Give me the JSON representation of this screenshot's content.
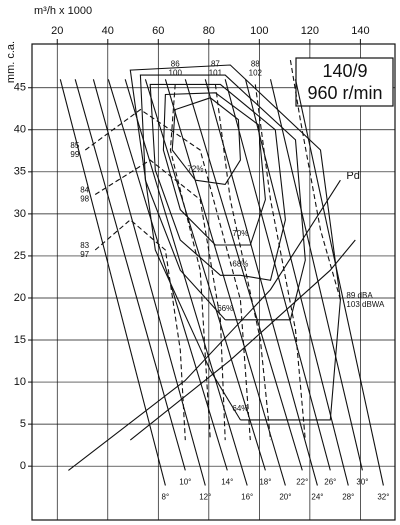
{
  "chart_data": {
    "type": "line",
    "title": "140/9",
    "subtitle": "960 r/min",
    "x_label": "m³/h x 1000",
    "y_label": "mm. c.a.",
    "xlim": [
      10,
      153.7
    ],
    "ylim": [
      -6.4,
      50.2
    ],
    "xticks": [
      20,
      40,
      60,
      80,
      100,
      120,
      140
    ],
    "yticks": [
      0,
      5,
      10,
      15,
      20,
      25,
      30,
      35,
      40,
      45
    ],
    "grid": true,
    "color": "#111",
    "series": [
      {
        "label": "8°",
        "style": "solid",
        "label_at": "end",
        "label_side": "below",
        "x": [
          21.2,
          62.8
        ],
        "values": [
          46.0,
          -2.3
        ]
      },
      {
        "label": "10°",
        "style": "solid",
        "label_at": "end",
        "label_side": "below",
        "x": [
          27.1,
          70.7
        ],
        "values": [
          46.0,
          -0.5
        ]
      },
      {
        "label": "12°",
        "style": "solid",
        "label_at": "end",
        "label_side": "below",
        "x": [
          34.3,
          78.6
        ],
        "values": [
          46.0,
          -2.3
        ]
      },
      {
        "label": "14°",
        "style": "solid",
        "label_at": "end",
        "label_side": "below",
        "x": [
          40.2,
          87.3
        ],
        "values": [
          46.0,
          -0.5
        ]
      },
      {
        "label": "16°",
        "style": "solid",
        "label_at": "end",
        "label_side": "below",
        "x": [
          46.9,
          95.2
        ],
        "values": [
          46.0,
          -2.3
        ]
      },
      {
        "label": "18°",
        "style": "solid",
        "label_at": "end",
        "label_side": "below",
        "x": [
          54.9,
          102.4
        ],
        "values": [
          46.0,
          -0.5
        ]
      },
      {
        "label": "20°",
        "style": "solid",
        "label_at": "end",
        "label_side": "below",
        "x": [
          62.8,
          110.3
        ],
        "values": [
          46.0,
          -2.3
        ]
      },
      {
        "label": "22°",
        "style": "solid",
        "label_at": "end",
        "label_side": "below",
        "x": [
          70.7,
          117.0
        ],
        "values": [
          46.0,
          -0.5
        ]
      },
      {
        "label": "24°",
        "style": "solid",
        "label_at": "end",
        "label_side": "below",
        "x": [
          78.6,
          123.0
        ],
        "values": [
          46.0,
          -2.3
        ]
      },
      {
        "label": "26°",
        "style": "solid",
        "label_at": "end",
        "label_side": "below",
        "x": [
          86.5,
          128.1
        ],
        "values": [
          46.0,
          -0.5
        ]
      },
      {
        "label": "28°",
        "style": "solid",
        "label_at": "end",
        "label_side": "below",
        "x": [
          94.5,
          135.2
        ],
        "values": [
          46.0,
          -2.3
        ]
      },
      {
        "label": "30°",
        "style": "solid",
        "label_at": "end",
        "label_side": "below",
        "x": [
          104.4,
          140.8
        ],
        "values": [
          46.0,
          -0.5
        ]
      },
      {
        "label": "32°",
        "style": "solid",
        "label_at": "end",
        "label_side": "below",
        "x": [
          114.3,
          149.1
        ],
        "values": [
          46.0,
          -2.3
        ]
      },
      {
        "label": "72%",
        "style": "solid",
        "label_at": "end",
        "label_side": "above",
        "x": [
          74.7,
          65.5,
          66.7,
          80.6,
          91.7,
          92.5,
          86.5,
          74.7
        ],
        "values": [
          34.0,
          37.6,
          42.4,
          43.8,
          41.2,
          36.4,
          33.5,
          34.0
        ]
      },
      {
        "label": "70%",
        "style": "solid",
        "label_at": "end",
        "label_side": "above",
        "x": [
          92.5,
          82.6,
          68.7,
          62.0,
          62.8,
          82.6,
          99.6,
          102.4,
          96.4,
          92.5
        ],
        "values": [
          26.3,
          26.3,
          30.5,
          37.6,
          44.2,
          44.4,
          40.6,
          31.7,
          26.3,
          26.3
        ]
      },
      {
        "label": "68%",
        "style": "solid",
        "label_at": "end",
        "label_side": "above",
        "x": [
          92.5,
          84.6,
          68.7,
          58.8,
          56.8,
          84.6,
          106.3,
          110.3,
          104.4,
          92.5
        ],
        "values": [
          22.7,
          22.7,
          26.9,
          35.2,
          45.4,
          45.4,
          40.0,
          29.3,
          22.1,
          22.7
        ]
      },
      {
        "label": "66%",
        "style": "solid",
        "label_at": "end",
        "label_side": "above",
        "x": [
          86.5,
          68.7,
          54.9,
          52.9,
          86.5,
          114.3,
          118.2,
          112.3,
          86.5
        ],
        "values": [
          17.4,
          23.3,
          34.0,
          46.5,
          46.5,
          38.8,
          24.5,
          17.4,
          17.4
        ]
      },
      {
        "label": "64%",
        "style": "solid",
        "label_at": "end",
        "label_side": "above",
        "x": [
          92.5,
          80.6,
          58.8,
          48.9,
          88.5,
          124.2,
          132.1,
          128.1,
          108.3,
          92.5
        ],
        "values": [
          5.5,
          11.4,
          25.7,
          47.1,
          47.7,
          37.6,
          19.8,
          5.5,
          5.5,
          5.5
        ]
      },
      {
        "label": "Pd",
        "style": "solid",
        "label_at": "end",
        "label_side": "right",
        "x": [
          24.4,
          70.7,
          104.4,
          132.1
        ],
        "values": [
          -0.5,
          10.2,
          21.0,
          34.0
        ]
      },
      {
        "style": "solid",
        "x": [
          48.9,
          88.5,
          128.1,
          138.0
        ],
        "values": [
          3.1,
          12.6,
          23.3,
          26.9
        ]
      },
      {
        "label": [
          "83",
          "97"
        ],
        "style": "dashed",
        "label_at": "start",
        "label_side": "left",
        "x": [
          35.0,
          48.9,
          62.8,
          68.7,
          70.7
        ],
        "values": [
          25.7,
          29.3,
          25.7,
          13.8,
          3.1
        ]
      },
      {
        "label": [
          "84",
          "98"
        ],
        "style": "dashed",
        "label_at": "start",
        "label_side": "left",
        "x": [
          35.0,
          56.8,
          76.6,
          84.6,
          86.5
        ],
        "values": [
          32.3,
          36.4,
          31.7,
          17.4,
          3.1
        ]
      },
      {
        "label": [
          "85",
          "99"
        ],
        "style": "dashed",
        "label_at": "start",
        "label_side": "left",
        "x": [
          31.1,
          52.9,
          76.6,
          92.5,
          96.4
        ],
        "values": [
          37.6,
          42.4,
          37.6,
          19.8,
          3.1
        ]
      },
      {
        "label": [
          "86",
          "100"
        ],
        "style": "dashed",
        "label_at": "start",
        "label_side": "above",
        "x": [
          66.7,
          64.8,
          76.6,
          80.6
        ],
        "values": [
          45.4,
          37.6,
          23.3,
          3.1
        ]
      },
      {
        "label": [
          "87",
          "101"
        ],
        "style": "dashed",
        "label_at": "start",
        "label_side": "above",
        "x": [
          82.6,
          88.5,
          100.4,
          104.4
        ],
        "values": [
          45.4,
          31.7,
          15.0,
          3.1
        ]
      },
      {
        "label": [
          "88",
          "102"
        ],
        "style": "dashed",
        "label_at": "start",
        "label_side": "above",
        "x": [
          98.4,
          104.4,
          114.3,
          118.2
        ],
        "values": [
          45.4,
          31.7,
          16.2,
          3.1
        ]
      },
      {
        "label": [
          "89 dBA",
          "103 dBWA"
        ],
        "style": "dashed",
        "label_at": "start",
        "label_side": "right",
        "x": [
          132.1,
          124.2,
          116.2,
          112.3
        ],
        "values": [
          19.8,
          28.1,
          41.2,
          48.3
        ]
      }
    ]
  }
}
